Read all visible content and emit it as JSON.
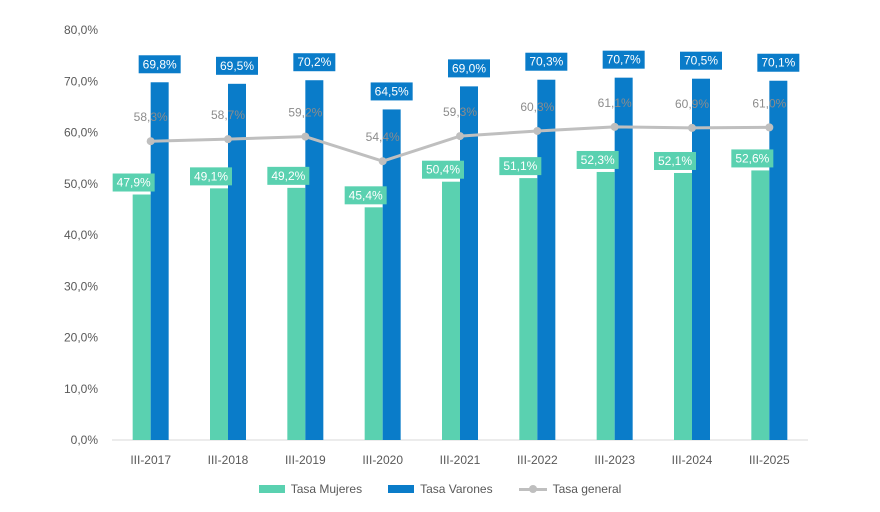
{
  "chart_data": {
    "type": "bar",
    "categories": [
      "III-2017",
      "III-2018",
      "III-2019",
      "III-2020",
      "III-2021",
      "III-2022",
      "III-2023",
      "III-2024",
      "III-2025"
    ],
    "series": [
      {
        "name": "Tasa Mujeres",
        "type": "bar",
        "color": "#5ad1b0",
        "values": [
          47.9,
          49.1,
          49.2,
          45.4,
          50.4,
          51.1,
          52.3,
          52.1,
          52.6
        ],
        "labels": [
          "47,9%",
          "49,1%",
          "49,2%",
          "45,4%",
          "50,4%",
          "51,1%",
          "52,3%",
          "52,1%",
          "52,6%"
        ]
      },
      {
        "name": "Tasa Varones",
        "type": "bar",
        "color": "#0a7cc9",
        "values": [
          69.8,
          69.5,
          70.2,
          64.5,
          69.0,
          70.3,
          70.7,
          70.5,
          70.1
        ],
        "labels": [
          "69,8%",
          "69,5%",
          "70,2%",
          "64,5%",
          "69,0%",
          "70,3%",
          "70,7%",
          "70,5%",
          "70,1%"
        ]
      },
      {
        "name": "Tasa general",
        "type": "line",
        "color": "#bfbfbf",
        "values": [
          58.3,
          58.7,
          59.2,
          54.4,
          59.3,
          60.3,
          61.1,
          60.9,
          61.0
        ],
        "labels": [
          "58,3%",
          "58,7%",
          "59,2%",
          "54,4%",
          "59,3%",
          "60,3%",
          "61,1%",
          "60,9%",
          "61,0%"
        ]
      }
    ],
    "ylim": [
      0,
      80
    ],
    "yticks": [
      "0,0%",
      "10,0%",
      "20,0%",
      "30,0%",
      "40,0%",
      "50,0%",
      "60,0%",
      "70,0%",
      "80,0%"
    ],
    "grid": false,
    "legend": "bottom"
  }
}
